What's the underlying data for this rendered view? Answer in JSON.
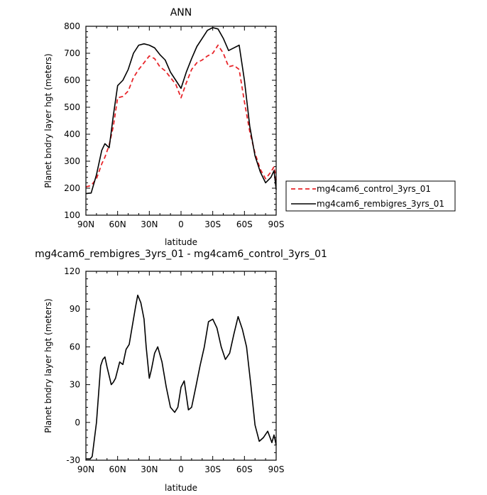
{
  "chart_data": [
    {
      "type": "line",
      "title": "ANN",
      "xlabel": "latitude",
      "ylabel": "Planet bndry layer hgt (meters)",
      "xlim": [
        90,
        -90
      ],
      "ylim": [
        100,
        800
      ],
      "x_tick_values": [
        90,
        60,
        30,
        0,
        -30,
        -60,
        -90
      ],
      "x_tick_labels": [
        "90N",
        "60N",
        "30N",
        "0",
        "30S",
        "60S",
        "90S"
      ],
      "y_ticks": [
        100,
        200,
        300,
        400,
        500,
        600,
        700,
        800
      ],
      "legend_placement": "right",
      "x": [
        90,
        85,
        80,
        75,
        72,
        68,
        64,
        60,
        55,
        50,
        45,
        40,
        35,
        30,
        25,
        20,
        15,
        10,
        5,
        0,
        -5,
        -10,
        -15,
        -20,
        -25,
        -30,
        -35,
        -40,
        -45,
        -50,
        -55,
        -60,
        -65,
        -70,
        -75,
        -80,
        -85,
        -88,
        -90
      ],
      "series": [
        {
          "name": "mg4cam6_control_3yrs_01",
          "color": "#e8252a",
          "dash": "dashed",
          "values": [
            205,
            210,
            235,
            290,
            315,
            360,
            430,
            535,
            540,
            560,
            610,
            640,
            665,
            690,
            680,
            650,
            635,
            610,
            585,
            535,
            590,
            640,
            665,
            675,
            690,
            700,
            730,
            700,
            650,
            655,
            640,
            520,
            410,
            330,
            270,
            235,
            260,
            280,
            230
          ]
        },
        {
          "name": "mg4cam6_rembigres_3yrs_01",
          "color": "#000000",
          "dash": "solid",
          "values": [
            180,
            182,
            250,
            340,
            365,
            350,
            470,
            580,
            600,
            640,
            700,
            730,
            735,
            730,
            720,
            695,
            675,
            630,
            600,
            570,
            630,
            680,
            725,
            755,
            785,
            795,
            790,
            755,
            710,
            720,
            730,
            600,
            430,
            320,
            260,
            220,
            240,
            265,
            195
          ]
        }
      ]
    },
    {
      "type": "line",
      "title": "mg4cam6_rembigres_3yrs_01 - mg4cam6_control_3yrs_01",
      "xlabel": "latitude",
      "ylabel": "Planet bndry layer hgt (meters)",
      "xlim": [
        90,
        -90
      ],
      "ylim": [
        -30,
        120
      ],
      "x_tick_values": [
        90,
        60,
        30,
        0,
        -30,
        -60,
        -90
      ],
      "x_tick_labels": [
        "90N",
        "60N",
        "30N",
        "0",
        "30S",
        "60S",
        "90S"
      ],
      "y_ticks": [
        -30,
        0,
        30,
        60,
        90,
        120
      ],
      "x": [
        90,
        86,
        84,
        80,
        76,
        74,
        72,
        70,
        66,
        64,
        62,
        58,
        55,
        52,
        49,
        46,
        43,
        41,
        38,
        35,
        33,
        30,
        28,
        25,
        22,
        18,
        14,
        10,
        6,
        3,
        0,
        -3,
        -7,
        -10,
        -14,
        -18,
        -22,
        -26,
        -30,
        -34,
        -38,
        -42,
        -46,
        -50,
        -54,
        -58,
        -62,
        -66,
        -70,
        -74,
        -78,
        -82,
        -86,
        -88,
        -90
      ],
      "series": [
        {
          "color": "#000000",
          "values": [
            -29,
            -29,
            -27,
            0,
            45,
            50,
            52,
            44,
            30,
            32,
            35,
            48,
            46,
            58,
            62,
            77,
            92,
            101,
            95,
            82,
            60,
            35,
            42,
            55,
            60,
            48,
            28,
            12,
            8,
            12,
            28,
            33,
            10,
            12,
            28,
            45,
            60,
            80,
            82,
            75,
            60,
            50,
            55,
            70,
            84,
            74,
            60,
            30,
            -2,
            -15,
            -12,
            -7,
            -16,
            -10,
            -18
          ]
        }
      ]
    }
  ]
}
